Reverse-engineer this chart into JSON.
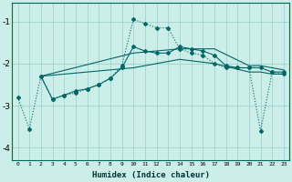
{
  "xlabel": "Humidex (Indice chaleur)",
  "background_color": "#cceee8",
  "grid_color": "#99cccc",
  "line_color": "#006666",
  "xlim": [
    -0.5,
    23.5
  ],
  "ylim": [
    -4.3,
    -0.55
  ],
  "yticks": [
    -4,
    -3,
    -2,
    -1
  ],
  "xticks": [
    0,
    1,
    2,
    3,
    4,
    5,
    6,
    7,
    8,
    9,
    10,
    11,
    12,
    13,
    14,
    15,
    16,
    17,
    18,
    19,
    20,
    21,
    22,
    23
  ],
  "s1_x": [
    0,
    1,
    2,
    3,
    4,
    5,
    6,
    7,
    8,
    9,
    10,
    11,
    12,
    13,
    14,
    15,
    16,
    17,
    18,
    19,
    20,
    21,
    22,
    23
  ],
  "s1_y": [
    -2.8,
    -3.55,
    -2.3,
    -2.85,
    -2.75,
    -2.7,
    -2.6,
    -2.5,
    -2.35,
    -2.05,
    -0.95,
    -1.05,
    -1.15,
    -1.15,
    -1.65,
    -1.75,
    -1.8,
    -2.0,
    -2.1,
    -2.1,
    -2.1,
    -3.6,
    -2.2,
    -2.25
  ],
  "s2_x": [
    2,
    3,
    4,
    5,
    6,
    7,
    8,
    9,
    10,
    11,
    12,
    13,
    14,
    15,
    16,
    17,
    18,
    19,
    20,
    21,
    22,
    23
  ],
  "s2_y": [
    -2.3,
    -2.85,
    -2.75,
    -2.65,
    -2.6,
    -2.5,
    -2.35,
    -2.1,
    -1.6,
    -1.7,
    -1.75,
    -1.75,
    -1.6,
    -1.65,
    -1.7,
    -1.8,
    -2.05,
    -2.1,
    -2.1,
    -2.1,
    -2.2,
    -2.2
  ],
  "s3_x": [
    2,
    10,
    14,
    17,
    20,
    21,
    22,
    23
  ],
  "s3_y": [
    -2.3,
    -1.75,
    -1.65,
    -1.65,
    -2.05,
    -2.05,
    -2.1,
    -2.15
  ],
  "s4_x": [
    2,
    10,
    14,
    17,
    20,
    21,
    22,
    23
  ],
  "s4_y": [
    -2.3,
    -2.1,
    -1.9,
    -2.0,
    -2.2,
    -2.2,
    -2.25,
    -2.25
  ]
}
